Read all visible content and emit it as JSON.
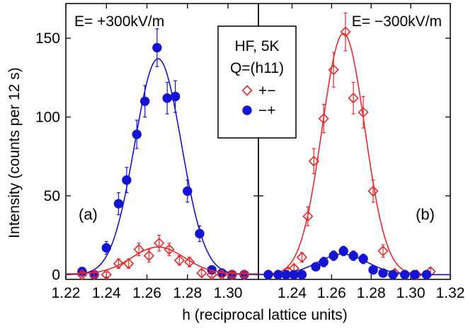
{
  "chart_data": {
    "type": "scatter",
    "xlabel": "h (reciprocal lattice units)",
    "ylabel": "Intensity (counts per 12 s)",
    "ylim": [
      -3,
      172
    ],
    "yticks": [
      0,
      50,
      100,
      150
    ],
    "ytick_labels": [
      "0",
      "50",
      "100",
      "150"
    ],
    "legend": {
      "placement": "top-center",
      "title_lines": [
        "HF, 5K",
        "Q=(h11)"
      ],
      "entries": [
        {
          "label": "+−",
          "marker": "open-diamond",
          "color": "#e8282b"
        },
        {
          "label": "−+",
          "marker": "filled-circle",
          "color": "#1414d2"
        }
      ]
    },
    "colors": {
      "plus_minus": "#e8282b",
      "minus_plus": "#1414d2"
    },
    "panels": [
      {
        "id": "a",
        "letter": "(a)",
        "title": "E= +300kV/m",
        "xlim": [
          1.22,
          1.315
        ],
        "xticks": [
          1.22,
          1.24,
          1.26,
          1.28,
          1.3
        ],
        "xtick_labels": [
          "1.22",
          "1.24",
          "1.26",
          "1.28",
          "1.30"
        ],
        "series": [
          {
            "name": "−+",
            "marker": "filled-circle",
            "color": "#1414d2",
            "points": [
              {
                "x": 1.228,
                "y": 2,
                "err": 1.5
              },
              {
                "x": 1.234,
                "y": 0,
                "err": 1.5
              },
              {
                "x": 1.24,
                "y": 17,
                "err": 4
              },
              {
                "x": 1.246,
                "y": 45,
                "err": 7
              },
              {
                "x": 1.25,
                "y": 60,
                "err": 8
              },
              {
                "x": 1.255,
                "y": 89,
                "err": 9
              },
              {
                "x": 1.259,
                "y": 110,
                "err": 10
              },
              {
                "x": 1.265,
                "y": 144,
                "err": 12
              },
              {
                "x": 1.27,
                "y": 112,
                "err": 10
              },
              {
                "x": 1.274,
                "y": 113,
                "err": 10
              },
              {
                "x": 1.28,
                "y": 53,
                "err": 7
              },
              {
                "x": 1.286,
                "y": 26,
                "err": 5
              },
              {
                "x": 1.292,
                "y": 3,
                "err": 2
              },
              {
                "x": 1.297,
                "y": 1,
                "err": 1.5
              },
              {
                "x": 1.302,
                "y": 0,
                "err": 1.5
              },
              {
                "x": 1.308,
                "y": 0,
                "err": 1.5
              }
            ],
            "fit": {
              "amplitude": 137,
              "center": 1.2655,
              "sigma": 0.0115,
              "baseline": 0
            }
          },
          {
            "name": "+−",
            "marker": "open-diamond",
            "color": "#e8282b",
            "points": [
              {
                "x": 1.228,
                "y": 0,
                "err": 1.5
              },
              {
                "x": 1.234,
                "y": 0,
                "err": 1.5
              },
              {
                "x": 1.24,
                "y": 0,
                "err": 1.5
              },
              {
                "x": 1.246,
                "y": 7,
                "err": 3
              },
              {
                "x": 1.251,
                "y": 7,
                "err": 3
              },
              {
                "x": 1.256,
                "y": 16,
                "err": 4
              },
              {
                "x": 1.261,
                "y": 12,
                "err": 4
              },
              {
                "x": 1.266,
                "y": 20,
                "err": 5
              },
              {
                "x": 1.271,
                "y": 16,
                "err": 4
              },
              {
                "x": 1.276,
                "y": 9,
                "err": 3
              },
              {
                "x": 1.281,
                "y": 8,
                "err": 3
              },
              {
                "x": 1.287,
                "y": 1,
                "err": 2
              },
              {
                "x": 1.292,
                "y": 0,
                "err": 1.5
              },
              {
                "x": 1.297,
                "y": 0,
                "err": 1.5
              },
              {
                "x": 1.302,
                "y": 0,
                "err": 1.5
              },
              {
                "x": 1.308,
                "y": 0,
                "err": 1.5
              }
            ],
            "fit": {
              "amplitude": 17,
              "center": 1.2655,
              "sigma": 0.013,
              "baseline": 0.5
            }
          }
        ]
      },
      {
        "id": "b",
        "letter": "(b)",
        "title": "E= −300kV/m",
        "xlim": [
          1.223,
          1.32
        ],
        "xticks": [
          1.24,
          1.26,
          1.28,
          1.3,
          1.32
        ],
        "xtick_labels": [
          "1.24",
          "1.26",
          "1.28",
          "1.30",
          "1.32"
        ],
        "series": [
          {
            "name": "+−",
            "marker": "open-diamond",
            "color": "#e8282b",
            "points": [
              {
                "x": 1.228,
                "y": 0,
                "err": 1.5
              },
              {
                "x": 1.233,
                "y": 0,
                "err": 1.5
              },
              {
                "x": 1.238,
                "y": 2,
                "err": 2
              },
              {
                "x": 1.241,
                "y": 4,
                "err": 2
              },
              {
                "x": 1.245,
                "y": 11,
                "err": 3
              },
              {
                "x": 1.248,
                "y": 37,
                "err": 6
              },
              {
                "x": 1.251,
                "y": 72,
                "err": 8
              },
              {
                "x": 1.256,
                "y": 99,
                "err": 9
              },
              {
                "x": 1.261,
                "y": 130,
                "err": 11
              },
              {
                "x": 1.267,
                "y": 154,
                "err": 12
              },
              {
                "x": 1.271,
                "y": 112,
                "err": 10
              },
              {
                "x": 1.276,
                "y": 103,
                "err": 10
              },
              {
                "x": 1.281,
                "y": 53,
                "err": 7
              },
              {
                "x": 1.286,
                "y": 15,
                "err": 4
              },
              {
                "x": 1.292,
                "y": 1,
                "err": 2
              },
              {
                "x": 1.297,
                "y": 0,
                "err": 1.5
              },
              {
                "x": 1.303,
                "y": 0,
                "err": 1.5
              },
              {
                "x": 1.31,
                "y": 2,
                "err": 2
              }
            ],
            "fit": {
              "amplitude": 153,
              "center": 1.266,
              "sigma": 0.0108,
              "baseline": 0
            }
          },
          {
            "name": "−+",
            "marker": "filled-circle",
            "color": "#1414d2",
            "points": [
              {
                "x": 1.228,
                "y": 0,
                "err": 1.5
              },
              {
                "x": 1.233,
                "y": 0,
                "err": 1.5
              },
              {
                "x": 1.237,
                "y": 0,
                "err": 1.5
              },
              {
                "x": 1.241,
                "y": 0,
                "err": 1.5
              },
              {
                "x": 1.245,
                "y": 0,
                "err": 1.5
              },
              {
                "x": 1.252,
                "y": 5,
                "err": 2
              },
              {
                "x": 1.256,
                "y": 8,
                "err": 3
              },
              {
                "x": 1.261,
                "y": 12,
                "err": 3
              },
              {
                "x": 1.266,
                "y": 15,
                "err": 3
              },
              {
                "x": 1.271,
                "y": 12,
                "err": 3
              },
              {
                "x": 1.276,
                "y": 10,
                "err": 3
              },
              {
                "x": 1.281,
                "y": 3,
                "err": 2
              },
              {
                "x": 1.286,
                "y": 1,
                "err": 1.5
              },
              {
                "x": 1.291,
                "y": 0,
                "err": 1.5
              },
              {
                "x": 1.297,
                "y": 0,
                "err": 1.5
              },
              {
                "x": 1.302,
                "y": 0,
                "err": 1.5
              },
              {
                "x": 1.308,
                "y": 0,
                "err": 1.5
              }
            ],
            "fit": {
              "amplitude": 13,
              "center": 1.2655,
              "sigma": 0.0125,
              "baseline": 0
            }
          }
        ]
      }
    ]
  }
}
